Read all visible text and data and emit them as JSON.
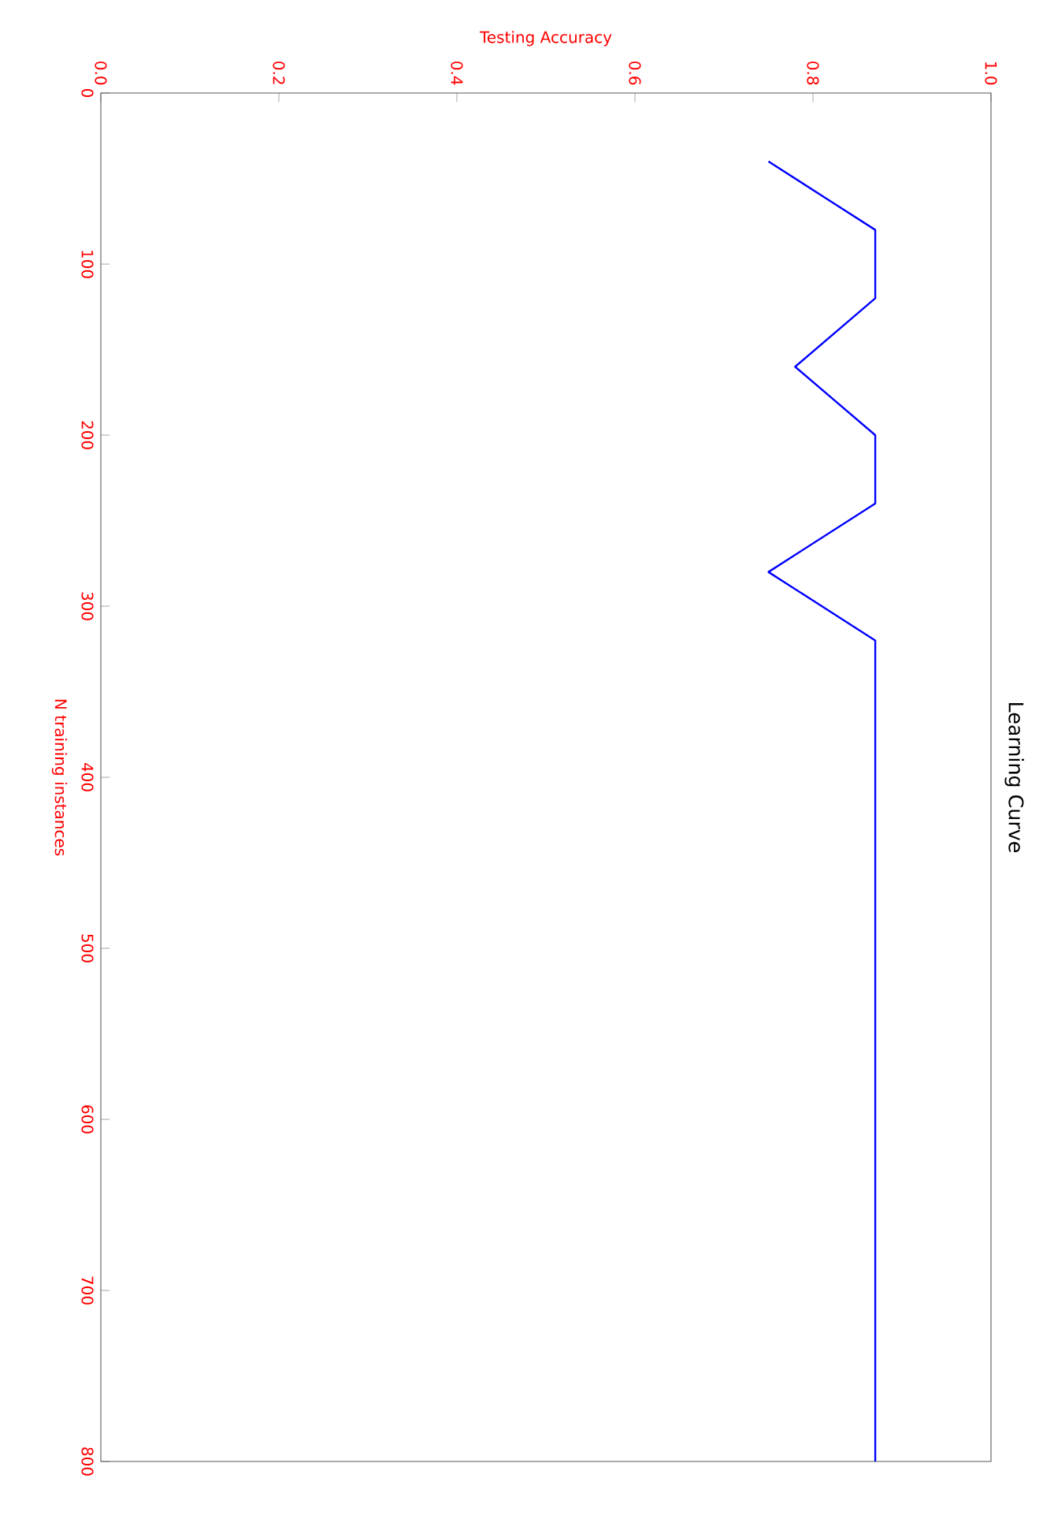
{
  "chart_data": {
    "type": "line",
    "title": "Learning Curve",
    "xlabel": "Testing Accuracy",
    "ylabel": "N training instances",
    "x": [
      0.75,
      0.87,
      0.87,
      0.78,
      0.87,
      0.87,
      0.75,
      0.87,
      0.87,
      0.87,
      0.87,
      0.87,
      0.87,
      0.87,
      0.87,
      0.87,
      0.87,
      0.87,
      0.87,
      0.87
    ],
    "series": [
      {
        "color": "#0000ff",
        "values": [
          40,
          80,
          120,
          160,
          200,
          240,
          280,
          320,
          360,
          400,
          440,
          480,
          520,
          560,
          600,
          640,
          680,
          720,
          760,
          800
        ]
      }
    ],
    "xlim": [
      0,
      1
    ],
    "ylim": [
      800,
      0
    ],
    "xticks": [
      {
        "value": 0,
        "label": "0.0"
      },
      0.2,
      0.4,
      0.6,
      0.8,
      {
        "value": 1,
        "label": "1.0"
      }
    ],
    "yticks": [
      0,
      100,
      200,
      300,
      400,
      500,
      600,
      700,
      800
    ],
    "grid": false,
    "marker": "none",
    "line_style": "solid"
  }
}
